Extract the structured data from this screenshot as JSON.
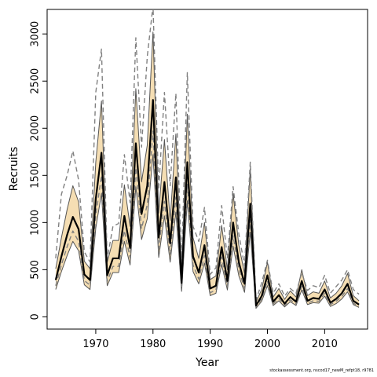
{
  "chart_data": {
    "type": "line",
    "xlabel": "Year",
    "ylabel": "Recruits",
    "xlim": [
      1961.5,
      2017.5
    ],
    "ylim": [
      -130,
      3260
    ],
    "xticks": [
      1970,
      1980,
      1990,
      2000,
      2010
    ],
    "yticks": [
      0,
      500,
      1000,
      1500,
      2000,
      2500,
      3000
    ],
    "grid": false,
    "legend": "none",
    "colors": {
      "band": "#f5deb3",
      "estimate": "#000000",
      "inner_lines": "#555555",
      "outer_lines": "#808080"
    },
    "x": [
      1963,
      1964,
      1965,
      1966,
      1967,
      1968,
      1969,
      1970,
      1971,
      1972,
      1973,
      1974,
      1975,
      1976,
      1977,
      1978,
      1979,
      1980,
      1981,
      1982,
      1983,
      1984,
      1985,
      1986,
      1987,
      1988,
      1989,
      1990,
      1991,
      1992,
      1993,
      1994,
      1995,
      1996,
      1997,
      1998,
      1999,
      2000,
      2001,
      2002,
      2003,
      2004,
      2005,
      2006,
      2007,
      2008,
      2009,
      2010,
      2011,
      2012,
      2013,
      2014,
      2015,
      2016
    ],
    "series": [
      {
        "name": "",
        "role": "estimate",
        "values": [
          390,
          640,
          870,
          1060,
          930,
          450,
          390,
          1250,
          1740,
          440,
          620,
          620,
          1070,
          730,
          1840,
          1090,
          1390,
          2300,
          840,
          1430,
          780,
          1480,
          360,
          1640,
          640,
          470,
          760,
          300,
          330,
          740,
          380,
          1000,
          580,
          350,
          1200,
          120,
          220,
          440,
          160,
          230,
          140,
          210,
          160,
          380,
          170,
          200,
          190,
          290,
          150,
          190,
          250,
          350,
          170,
          130
        ]
      },
      {
        "name": "",
        "role": "band-lower",
        "values": [
          290,
          480,
          650,
          800,
          700,
          340,
          290,
          940,
          1310,
          330,
          470,
          470,
          800,
          550,
          1380,
          820,
          1040,
          1720,
          630,
          1070,
          580,
          1110,
          270,
          1230,
          480,
          350,
          570,
          225,
          250,
          555,
          285,
          750,
          435,
          260,
          900,
          90,
          165,
          330,
          120,
          170,
          105,
          160,
          120,
          285,
          130,
          150,
          145,
          220,
          110,
          140,
          190,
          265,
          130,
          100
        ]
      },
      {
        "name": "",
        "role": "band-upper",
        "values": [
          510,
          840,
          1140,
          1390,
          1220,
          590,
          510,
          1640,
          2290,
          580,
          810,
          810,
          1400,
          960,
          2420,
          1430,
          1820,
          3020,
          1100,
          1880,
          1020,
          1940,
          470,
          2150,
          840,
          620,
          1000,
          395,
          435,
          970,
          500,
          1310,
          760,
          460,
          1570,
          155,
          290,
          580,
          210,
          300,
          185,
          275,
          210,
          500,
          225,
          265,
          250,
          380,
          200,
          250,
          330,
          460,
          225,
          170
        ]
      },
      {
        "name": "",
        "role": "dash-lower",
        "values": [
          330,
          550,
          745,
          910,
          800,
          385,
          335,
          1070,
          1500,
          375,
          535,
          535,
          915,
          625,
          1580,
          935,
          1190,
          1970,
          720,
          1225,
          665,
          1270,
          310,
          1405,
          550,
          400,
          650,
          255,
          285,
          635,
          325,
          860,
          500,
          300,
          1030,
          105,
          190,
          380,
          135,
          195,
          120,
          180,
          135,
          325,
          145,
          170,
          165,
          250,
          130,
          165,
          215,
          300,
          145,
          110
        ]
      },
      {
        "name": "",
        "role": "dash-upper",
        "values": [
          620,
          1300,
          1500,
          1760,
          1450,
          690,
          580,
          2380,
          2840,
          610,
          960,
          990,
          1720,
          1210,
          2960,
          1800,
          2760,
          3300,
          1350,
          2380,
          1390,
          2370,
          580,
          2590,
          960,
          800,
          1160,
          450,
          520,
          1180,
          620,
          1380,
          880,
          540,
          1640,
          175,
          360,
          600,
          250,
          350,
          220,
          300,
          250,
          470,
          280,
          330,
          310,
          440,
          250,
          320,
          390,
          500,
          290,
          240
        ]
      }
    ]
  },
  "footer": "stockassessment.org, nscod17_newM_refpt18, r9781"
}
